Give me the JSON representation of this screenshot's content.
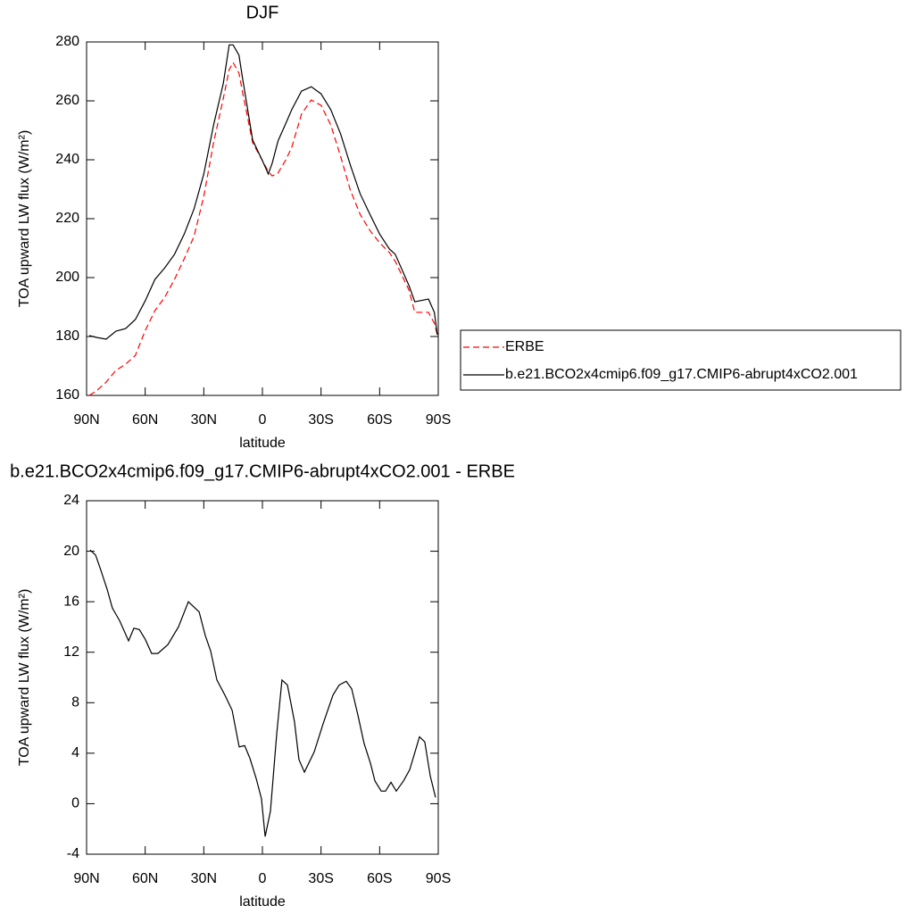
{
  "chart_data": [
    {
      "type": "line",
      "title": "DJF",
      "xlabel": "latitude",
      "ylabel": "TOA upward LW flux (W/m²)",
      "x": [
        88.6,
        85,
        80,
        75,
        70,
        65,
        60,
        55,
        50,
        45,
        40,
        35,
        30,
        25,
        20,
        17,
        15,
        12,
        10,
        5,
        0,
        -3,
        -5,
        -8,
        -12,
        -15,
        -20,
        -25,
        -30,
        -35,
        -40,
        -45,
        -50,
        -55,
        -60,
        -65,
        -68,
        -75,
        -78,
        -85,
        -88,
        -89.5
      ],
      "series": [
        {
          "name": "ERBE",
          "color": "#ff0000",
          "dashed": true,
          "values": [
            160,
            161.5,
            164.5,
            168.5,
            170.6,
            173.6,
            182,
            188.8,
            193.3,
            199.4,
            206.4,
            214,
            227.6,
            245.8,
            260.9,
            270.6,
            273,
            269.4,
            262.4,
            245.8,
            239.7,
            236,
            234.5,
            235.5,
            240,
            244.2,
            255.5,
            260.3,
            258.5,
            251.8,
            241.2,
            229.7,
            221.5,
            216,
            211.8,
            208.5,
            205.5,
            195.8,
            188.2,
            188.2,
            184.5,
            180.6
          ]
        },
        {
          "name": "b.e21.BCO2x4cmip6.f09_g17.CMIP6-abrupt4xCO2.001",
          "color": "#000000",
          "dashed": false,
          "values": [
            180.3,
            179.7,
            179.1,
            181.8,
            182.7,
            185.8,
            192.1,
            199.4,
            203.3,
            207.9,
            214.8,
            223.3,
            235.2,
            251.8,
            266,
            279,
            279,
            275.5,
            267,
            246.7,
            239.7,
            235.2,
            238.8,
            246.4,
            252.4,
            257,
            263.3,
            264.8,
            262.4,
            257,
            248.8,
            238.2,
            228.5,
            221.5,
            214.8,
            209.7,
            207.9,
            197.3,
            191.8,
            192.7,
            188.2,
            180.6
          ]
        }
      ],
      "xlim": [
        90,
        -90
      ],
      "xticks": [
        {
          "value": 90,
          "label": "90N"
        },
        {
          "value": 60,
          "label": "60N"
        },
        {
          "value": 30,
          "label": "30N"
        },
        0,
        {
          "value": -30,
          "label": "30S"
        },
        {
          "value": -60,
          "label": "60S"
        },
        {
          "value": -90,
          "label": "90S"
        }
      ],
      "ylim": [
        160,
        280
      ],
      "yticks": [
        160,
        180,
        200,
        220,
        240,
        260,
        280
      ],
      "legend": "right"
    },
    {
      "type": "line",
      "title": "b.e21.BCO2x4cmip6.f09_g17.CMIP6-abrupt4xCO2.001 - ERBE",
      "xlabel": "latitude",
      "ylabel": "TOA upward LW flux (W/m²)",
      "x": [
        88.2,
        85.4,
        82.7,
        79.5,
        76.8,
        73.1,
        68.5,
        65.8,
        63,
        59.9,
        56.7,
        53.5,
        48.4,
        43,
        37.9,
        33.8,
        32.4,
        29.2,
        26.5,
        23.3,
        19.2,
        15.5,
        11.9,
        9.1,
        6.4,
        3.2,
        0.5,
        -1.4,
        -4.1,
        -7.3,
        -10,
        -12.8,
        -16.4,
        -18.7,
        -21.5,
        -26.5,
        -31,
        -36.1,
        -39.3,
        -42.9,
        -45.7,
        -48.9,
        -52,
        -55.3,
        -57.6,
        -60.8,
        -63,
        -65.8,
        -68.5,
        -72.2,
        -75.4,
        -78.1,
        -80.4,
        -83.1,
        -85.9,
        -88.6
      ],
      "values": [
        20.1,
        19.7,
        18.5,
        17,
        15.5,
        14.5,
        12.9,
        13.9,
        13.8,
        13,
        11.9,
        11.9,
        12.6,
        14,
        16,
        15.4,
        15.2,
        13.3,
        12.1,
        9.8,
        8.6,
        7.4,
        4.5,
        4.6,
        3.6,
        2,
        0.4,
        -2.6,
        -0.6,
        5.5,
        9.8,
        9.4,
        6.5,
        3.5,
        2.5,
        4.1,
        6.3,
        8.6,
        9.4,
        9.7,
        9.1,
        7,
        4.8,
        3.2,
        1.8,
        1,
        1,
        1.7,
        1,
        1.8,
        2.7,
        4.1,
        5.3,
        4.9,
        2.2,
        0.5
      ],
      "color": "#000000",
      "xlim": [
        90,
        -90
      ],
      "xticks": [
        {
          "value": 90,
          "label": "90N"
        },
        {
          "value": 60,
          "label": "60N"
        },
        {
          "value": 30,
          "label": "30N"
        },
        0,
        {
          "value": -30,
          "label": "30S"
        },
        {
          "value": -60,
          "label": "60S"
        },
        {
          "value": -90,
          "label": "90S"
        }
      ],
      "ylim": [
        -4,
        24
      ],
      "yticks": [
        -4,
        0,
        4,
        8,
        12,
        16,
        20,
        24
      ]
    }
  ]
}
